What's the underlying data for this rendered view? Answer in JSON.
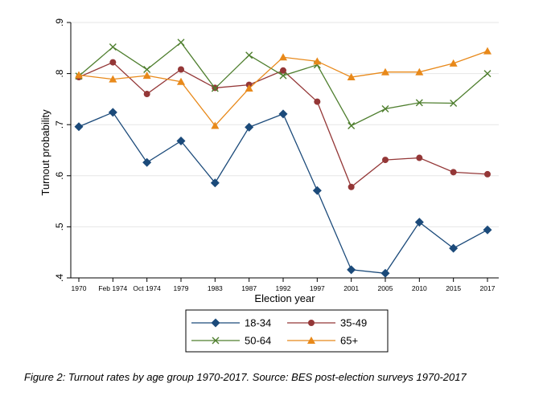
{
  "chart_data": {
    "type": "line",
    "ylabel": "Turnout probability",
    "xlabel": "Election year",
    "categories": [
      "1970",
      "Feb 1974",
      "Oct 1974",
      "1979",
      "1983",
      "1987",
      "1992",
      "1997",
      "2001",
      "2005",
      "2010",
      "2015",
      "2017"
    ],
    "ylim": [
      0.4,
      0.9
    ],
    "yticks": [
      0.4,
      0.5,
      0.6,
      0.7,
      0.8,
      0.9
    ],
    "ytick_labels": [
      ".4",
      ".5",
      ".6",
      ".7",
      ".8",
      ".9"
    ],
    "grid": true,
    "legend_position": "bottom",
    "series": [
      {
        "name": "18-34",
        "color": "#1b4a7a",
        "marker": "diamond",
        "values": [
          0.696,
          0.724,
          0.626,
          0.668,
          0.586,
          0.695,
          0.721,
          0.571,
          0.416,
          0.409,
          0.509,
          0.458,
          0.494
        ]
      },
      {
        "name": "35-49",
        "color": "#943737",
        "marker": "circle",
        "values": [
          0.793,
          0.822,
          0.76,
          0.808,
          0.772,
          0.778,
          0.806,
          0.745,
          0.578,
          0.631,
          0.635,
          0.607,
          0.603
        ]
      },
      {
        "name": "50-64",
        "color": "#4f7f2f",
        "marker": "x",
        "values": [
          0.795,
          0.852,
          0.808,
          0.861,
          0.771,
          0.836,
          0.796,
          0.817,
          0.698,
          0.731,
          0.743,
          0.742,
          0.8
        ]
      },
      {
        "name": "65+",
        "color": "#e8891a",
        "marker": "triangle",
        "values": [
          0.797,
          0.789,
          0.796,
          0.784,
          0.698,
          0.771,
          0.832,
          0.824,
          0.793,
          0.803,
          0.803,
          0.82,
          0.844
        ]
      }
    ]
  },
  "caption": "Figure 2: Turnout rates by age group 1970-2017. Source: BES post-election surveys 1970-2017"
}
